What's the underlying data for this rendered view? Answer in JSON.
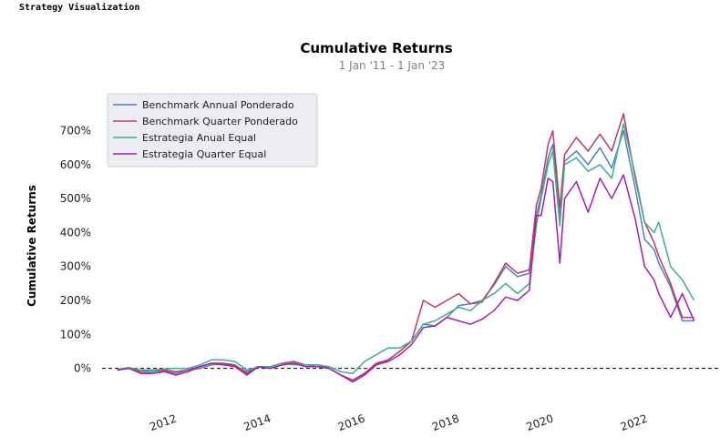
{
  "app": {
    "label": "Strategy Visualization"
  },
  "chart_data": {
    "type": "line",
    "title": "Cumulative Returns",
    "subtitle": "1 Jan '11 -  1 Jan '23",
    "ylabel": "Cumulative Returns",
    "xlabel": "",
    "xlim": [
      2010.6,
      2023.8
    ],
    "ylim": [
      -95,
      790
    ],
    "y_ticks": [
      0,
      100,
      200,
      300,
      400,
      500,
      600,
      700
    ],
    "y_tick_labels": [
      "0%",
      "100%",
      "200%",
      "300%",
      "400%",
      "500%",
      "600%",
      "700%"
    ],
    "x_ticks": [
      2012,
      2014,
      2016,
      2018,
      2020,
      2022
    ],
    "x_tick_labels": [
      "2012",
      "2014",
      "2016",
      "2018",
      "2020",
      "2022"
    ],
    "baseline": 0,
    "legend_position": "top-left",
    "grid": false,
    "series": [
      {
        "name": "Benchmark Annual Ponderado",
        "color": "#4f81bd",
        "x": [
          2011.0,
          2011.25,
          2011.5,
          2011.75,
          2012.0,
          2012.25,
          2012.5,
          2012.75,
          2013.0,
          2013.25,
          2013.5,
          2013.75,
          2014.0,
          2014.25,
          2014.5,
          2014.75,
          2015.0,
          2015.25,
          2015.5,
          2015.75,
          2016.0,
          2016.25,
          2016.5,
          2016.75,
          2017.0,
          2017.25,
          2017.5,
          2017.75,
          2018.0,
          2018.25,
          2018.5,
          2018.75,
          2019.0,
          2019.25,
          2019.5,
          2019.75,
          2019.9,
          2020.0,
          2020.15,
          2020.25,
          2020.4,
          2020.5,
          2020.75,
          2021.0,
          2021.25,
          2021.5,
          2021.75,
          2022.0,
          2022.2,
          2022.4,
          2022.5,
          2022.75,
          2023.0,
          2023.25
        ],
        "y": [
          -5,
          2,
          -15,
          -10,
          -8,
          -15,
          -5,
          0,
          10,
          12,
          8,
          -10,
          5,
          0,
          10,
          15,
          5,
          10,
          0,
          -20,
          -35,
          -15,
          10,
          25,
          50,
          80,
          130,
          125,
          150,
          185,
          190,
          200,
          245,
          300,
          270,
          280,
          450,
          510,
          620,
          660,
          440,
          610,
          640,
          600,
          650,
          590,
          700,
          530,
          380,
          350,
          310,
          240,
          140,
          140
        ]
      },
      {
        "name": "Benchmark Quarter Ponderado",
        "color": "#c0395f",
        "x": [
          2011.0,
          2011.25,
          2011.5,
          2011.75,
          2012.0,
          2012.25,
          2012.5,
          2012.75,
          2013.0,
          2013.25,
          2013.5,
          2013.75,
          2014.0,
          2014.25,
          2014.5,
          2014.75,
          2015.0,
          2015.25,
          2015.5,
          2015.75,
          2016.0,
          2016.25,
          2016.5,
          2016.75,
          2017.0,
          2017.25,
          2017.5,
          2017.75,
          2018.0,
          2018.25,
          2018.5,
          2018.75,
          2019.0,
          2019.25,
          2019.5,
          2019.75,
          2019.9,
          2020.0,
          2020.15,
          2020.25,
          2020.4,
          2020.5,
          2020.75,
          2021.0,
          2021.25,
          2021.5,
          2021.75,
          2022.0,
          2022.2,
          2022.4,
          2022.5,
          2022.75,
          2023.0,
          2023.25
        ],
        "y": [
          -5,
          0,
          -10,
          -5,
          -5,
          -10,
          -5,
          5,
          15,
          15,
          10,
          -15,
          5,
          5,
          15,
          20,
          10,
          10,
          0,
          -20,
          -35,
          -15,
          15,
          25,
          50,
          80,
          200,
          180,
          200,
          220,
          190,
          195,
          250,
          310,
          280,
          290,
          480,
          530,
          660,
          700,
          470,
          630,
          680,
          640,
          690,
          640,
          750,
          560,
          430,
          370,
          330,
          250,
          150,
          150
        ]
      },
      {
        "name": "Estrategia Anual Equal",
        "color": "#3fae8c",
        "x": [
          2011.0,
          2011.25,
          2011.5,
          2011.75,
          2012.0,
          2012.25,
          2012.5,
          2012.75,
          2013.0,
          2013.25,
          2013.5,
          2013.75,
          2014.0,
          2014.25,
          2014.5,
          2014.75,
          2015.0,
          2015.25,
          2015.5,
          2015.75,
          2016.0,
          2016.25,
          2016.5,
          2016.75,
          2017.0,
          2017.25,
          2017.5,
          2017.75,
          2018.0,
          2018.25,
          2018.5,
          2018.75,
          2019.0,
          2019.25,
          2019.5,
          2019.75,
          2019.9,
          2020.0,
          2020.15,
          2020.25,
          2020.4,
          2020.5,
          2020.75,
          2021.0,
          2021.25,
          2021.5,
          2021.75,
          2022.0,
          2022.2,
          2022.4,
          2022.5,
          2022.75,
          2023.0,
          2023.25
        ],
        "y": [
          -3,
          2,
          -5,
          -5,
          -2,
          0,
          0,
          10,
          25,
          25,
          20,
          -5,
          5,
          5,
          15,
          10,
          10,
          10,
          5,
          -10,
          -15,
          20,
          40,
          60,
          60,
          80,
          130,
          140,
          160,
          180,
          170,
          200,
          220,
          250,
          220,
          250,
          420,
          500,
          600,
          640,
          420,
          600,
          620,
          580,
          600,
          560,
          720,
          570,
          430,
          400,
          430,
          300,
          260,
          200
        ]
      },
      {
        "name": "Estrategia Quarter Equal",
        "color": "#a01fb4",
        "x": [
          2011.0,
          2011.25,
          2011.5,
          2011.75,
          2012.0,
          2012.25,
          2012.5,
          2012.75,
          2013.0,
          2013.25,
          2013.5,
          2013.75,
          2014.0,
          2014.25,
          2014.5,
          2014.75,
          2015.0,
          2015.25,
          2015.5,
          2015.75,
          2016.0,
          2016.25,
          2016.5,
          2016.75,
          2017.0,
          2017.25,
          2017.5,
          2017.75,
          2018.0,
          2018.25,
          2018.5,
          2018.75,
          2019.0,
          2019.25,
          2019.5,
          2019.75,
          2019.9,
          2020.0,
          2020.15,
          2020.25,
          2020.4,
          2020.5,
          2020.75,
          2021.0,
          2021.25,
          2021.5,
          2021.75,
          2022.0,
          2022.2,
          2022.4,
          2022.5,
          2022.75,
          2023.0,
          2023.25
        ],
        "y": [
          -5,
          0,
          -15,
          -15,
          -10,
          -20,
          -10,
          5,
          15,
          10,
          5,
          -20,
          5,
          0,
          10,
          15,
          5,
          5,
          0,
          -20,
          -40,
          -20,
          10,
          20,
          40,
          70,
          120,
          125,
          150,
          140,
          130,
          145,
          170,
          210,
          200,
          230,
          450,
          450,
          560,
          550,
          310,
          500,
          550,
          460,
          560,
          500,
          570,
          440,
          300,
          260,
          220,
          150,
          220,
          140
        ]
      }
    ]
  }
}
